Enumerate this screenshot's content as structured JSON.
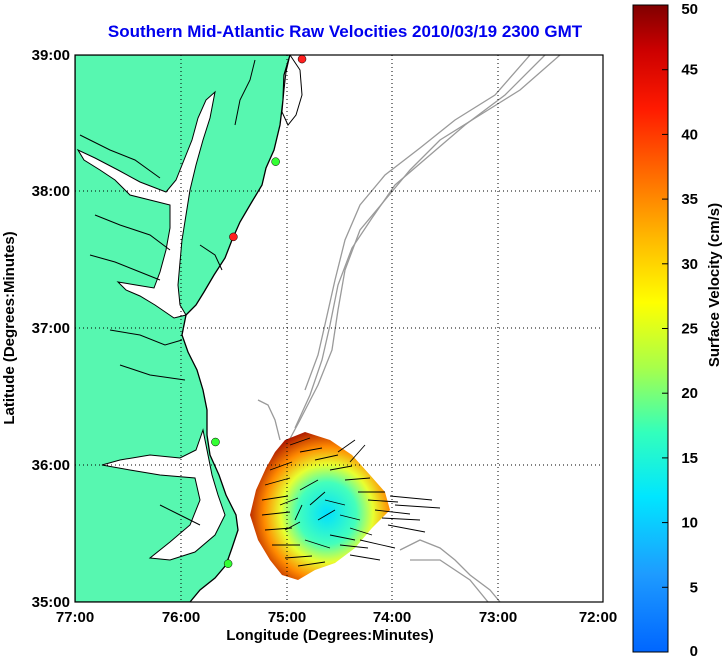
{
  "title": "Southern Mid-Atlantic Raw Velocities 2010/03/19 2300 GMT",
  "map": {
    "x_ticks": [
      "77:00",
      "76:00",
      "75:00",
      "74:00",
      "73:00",
      "72:00"
    ],
    "y_ticks": [
      "39:00",
      "38:00",
      "37:00",
      "36:00",
      "35:00"
    ],
    "xlabel": "Longitude (Degrees:Minutes)",
    "ylabel": "Latitude (Degrees:Minutes)",
    "lon_range": [
      -77,
      -72
    ],
    "lat_range": [
      35,
      39
    ],
    "grid": "dotted",
    "colors": {
      "land": "#57f7b0",
      "coastline": "#000000",
      "bathymetry": "#9a9a9a",
      "vectors": "#000000",
      "title": "#0000ee"
    },
    "stations": [
      {
        "lon": -74.85,
        "lat": 38.97,
        "color": "#ff2020"
      },
      {
        "lon": -75.1,
        "lat": 38.22,
        "color": "#33ff33"
      },
      {
        "lon": -75.5,
        "lat": 37.67,
        "color": "#ff2020"
      },
      {
        "lon": -75.67,
        "lat": 36.17,
        "color": "#33ff33"
      },
      {
        "lon": -75.55,
        "lat": 35.28,
        "color": "#33ff33"
      }
    ]
  },
  "colorbar": {
    "label": "Surface Velocity (cm/s)",
    "ticks": [
      "50",
      "45",
      "40",
      "35",
      "30",
      "25",
      "20",
      "15",
      "10",
      "5",
      "0"
    ],
    "min": 0,
    "max": 50,
    "colormap": "jet"
  }
}
